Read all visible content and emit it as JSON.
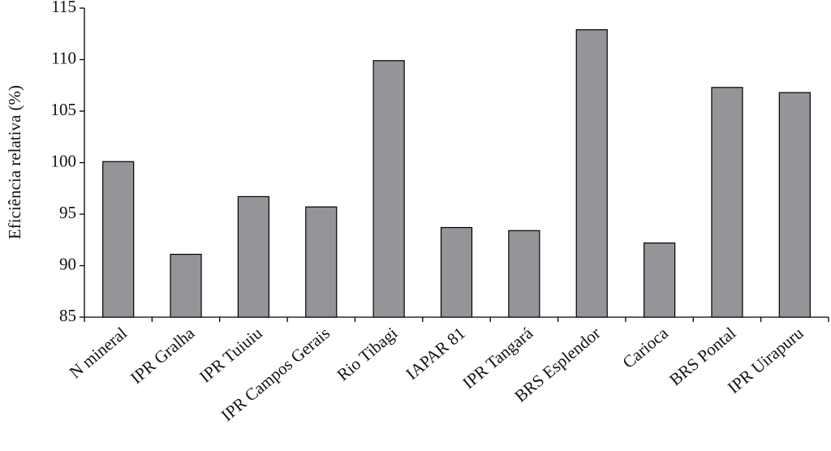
{
  "chart_data": {
    "type": "bar",
    "y_label": "Eficiência relativa (%)",
    "categories": [
      "N mineral",
      "IPR Gralha",
      "IPR Tuiuiu",
      "IPR Campos Gerais",
      "Rio Tibagi",
      "IAPAR 81",
      "IPR Tangará",
      "BRS Esplendor",
      "Carioca",
      "BRS Pontal",
      "IPR Uirapuru"
    ],
    "values": [
      100.1,
      91.1,
      96.7,
      95.7,
      109.9,
      93.7,
      93.4,
      112.9,
      92.2,
      107.3,
      106.8
    ],
    "color": "#939598",
    "ylim": [
      85,
      115
    ],
    "yticks": [
      85,
      90,
      95,
      100,
      105,
      110,
      115
    ],
    "grid": false
  }
}
